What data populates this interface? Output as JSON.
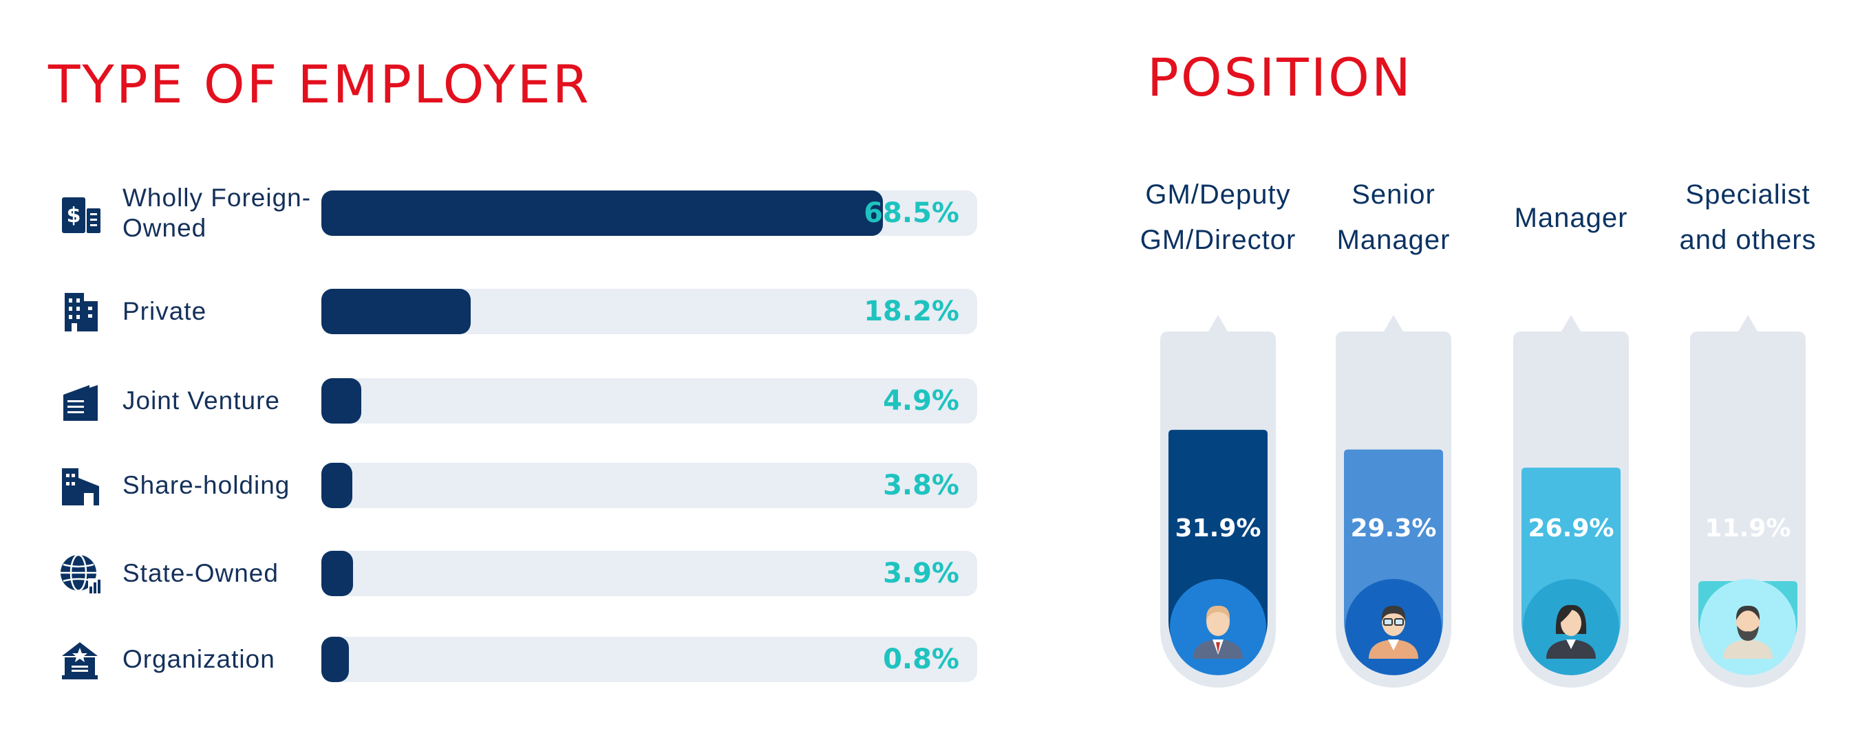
{
  "employer": {
    "title": "TYPE OF EMPLOYER",
    "rows": [
      {
        "label": "Wholly Foreign-\nOwned",
        "pct": "68.5%",
        "icon": "building-dollar-icon"
      },
      {
        "label": "Private",
        "pct": "18.2%",
        "icon": "office-building-icon"
      },
      {
        "label": "Joint Venture",
        "pct": "4.9%",
        "icon": "joint-venture-building-icon"
      },
      {
        "label": "Share-holding",
        "pct": "3.8%",
        "icon": "share-holding-building-icon"
      },
      {
        "label": "State-Owned",
        "pct": "3.9%",
        "icon": "globe-chart-icon"
      },
      {
        "label": "Organization",
        "pct": "0.8%",
        "icon": "star-building-icon"
      }
    ]
  },
  "position": {
    "title": "POSITION",
    "columns": [
      {
        "label": "GM/Deputy\nGM/Director",
        "pct": "31.9%",
        "icon": "executive-avatar-icon"
      },
      {
        "label": "Senior\nManager",
        "pct": "29.3%",
        "icon": "glasses-manager-avatar-icon"
      },
      {
        "label": "Manager",
        "pct": "26.9%",
        "icon": "woman-manager-avatar-icon"
      },
      {
        "label": "Specialist\nand others",
        "pct": "11.9%",
        "icon": "bearded-specialist-avatar-icon"
      }
    ]
  },
  "colors": {
    "title": "#e3101e",
    "employer_bar": "#0b3262",
    "employer_pct": "#1ec3bf",
    "position_fills": [
      "#03437f",
      "#4b8fd6",
      "#47bde3",
      "#4fd1dc"
    ],
    "position_circles": [
      "#1f7fd6",
      "#1565c0",
      "#29a5d2",
      "#a8eefa"
    ]
  },
  "chart_data": [
    {
      "type": "bar",
      "title": "TYPE OF EMPLOYER",
      "orientation": "horizontal",
      "categories": [
        "Wholly Foreign-Owned",
        "Private",
        "Joint Venture",
        "Share-holding",
        "State-Owned",
        "Organization"
      ],
      "values": [
        68.5,
        18.2,
        4.9,
        3.8,
        3.9,
        0.8
      ],
      "unit": "%"
    },
    {
      "type": "bar",
      "title": "POSITION",
      "orientation": "vertical",
      "categories": [
        "GM/Deputy GM/Director",
        "Senior Manager",
        "Manager",
        "Specialist and others"
      ],
      "values": [
        31.9,
        29.3,
        26.9,
        11.9
      ],
      "unit": "%"
    }
  ]
}
